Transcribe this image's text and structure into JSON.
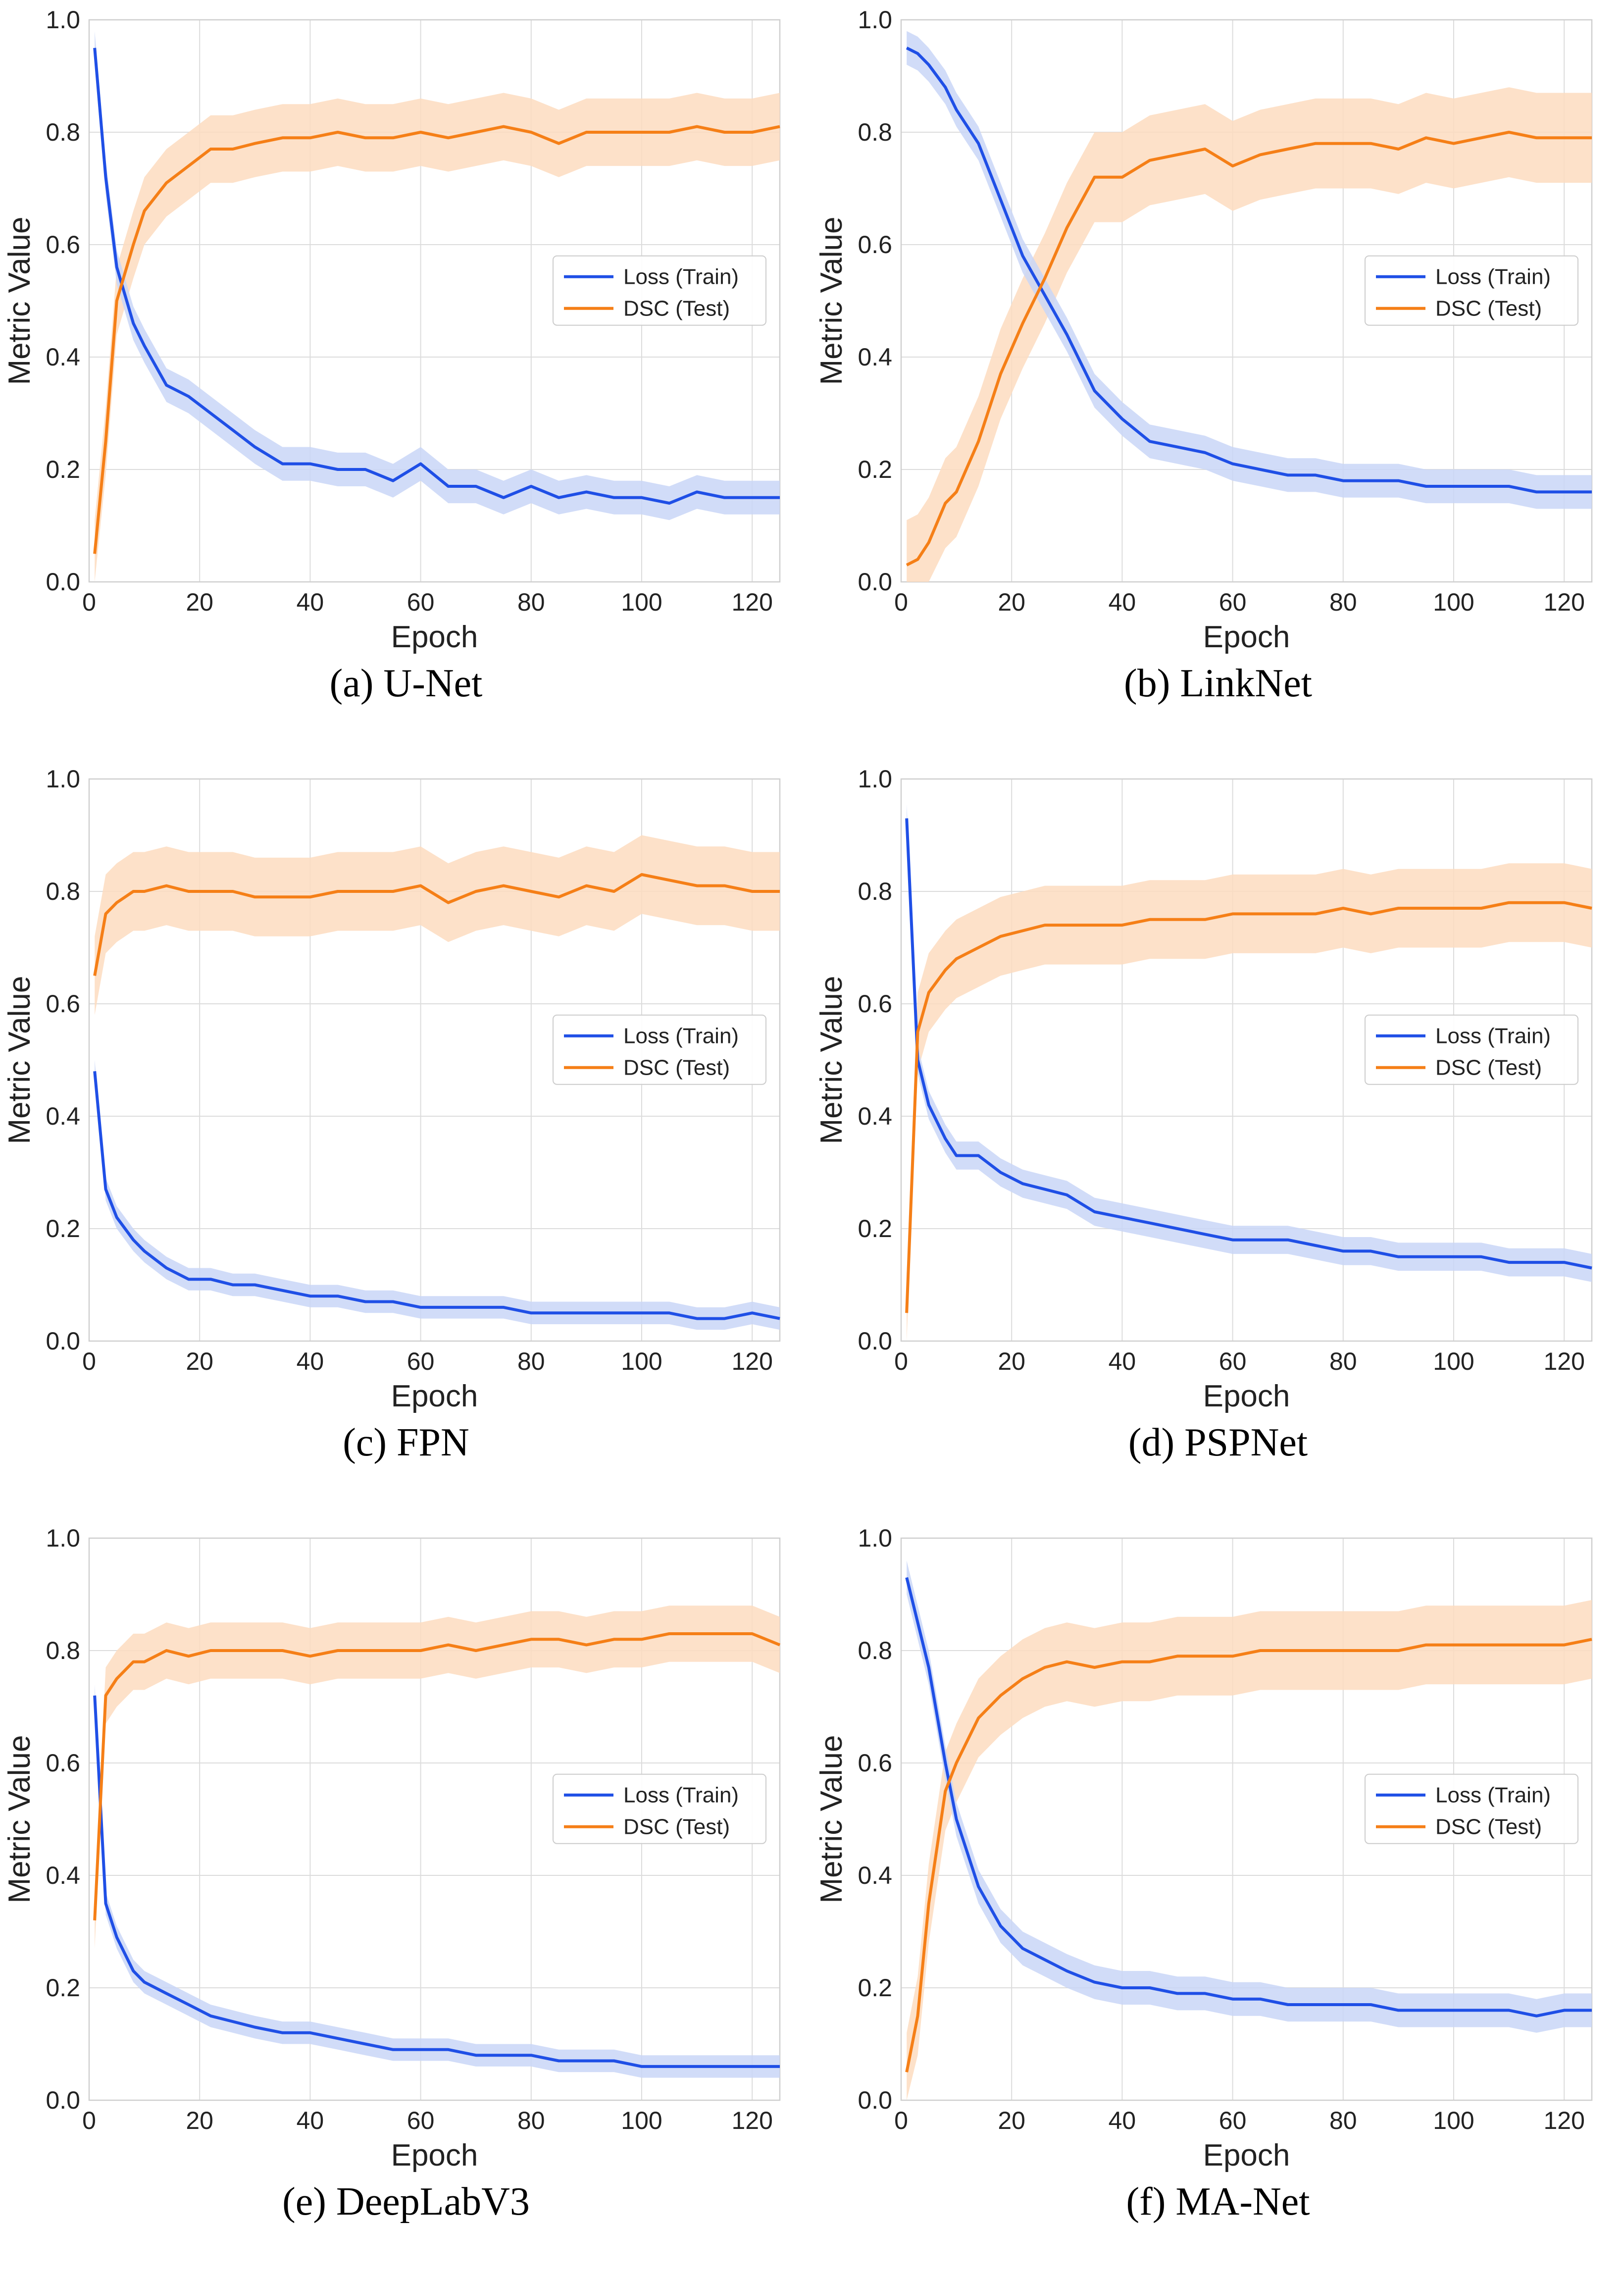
{
  "figure": {
    "colors": {
      "loss": "#1f4fe6",
      "loss_band": "#c9d6f7",
      "dsc": "#f57f17",
      "dsc_band": "#fddcbf",
      "grid": "#dcdcdc",
      "axis": "#cfcfcf"
    }
  },
  "chart_data": [
    {
      "type": "line",
      "caption": "(a) U-Net",
      "xlabel": "Epoch",
      "ylabel": "Metric Value",
      "xlim": [
        0,
        125
      ],
      "ylim": [
        0,
        1.0
      ],
      "xticks": [
        "0",
        "20",
        "40",
        "60",
        "80",
        "100",
        "120"
      ],
      "yticks": [
        "0.0",
        "0.2",
        "0.4",
        "0.6",
        "0.8",
        "1.0"
      ],
      "grid": true,
      "legend_position": "right",
      "series": [
        {
          "name": "Loss (Train)",
          "color": "#1f4fe6",
          "band": 0.03,
          "x": [
            1,
            3,
            5,
            8,
            10,
            14,
            18,
            22,
            26,
            30,
            35,
            40,
            45,
            50,
            55,
            60,
            65,
            70,
            75,
            80,
            85,
            90,
            95,
            100,
            105,
            110,
            115,
            120,
            125
          ],
          "values": [
            0.95,
            0.72,
            0.56,
            0.46,
            0.42,
            0.35,
            0.33,
            0.3,
            0.27,
            0.24,
            0.21,
            0.21,
            0.2,
            0.2,
            0.18,
            0.21,
            0.17,
            0.17,
            0.15,
            0.17,
            0.15,
            0.16,
            0.15,
            0.15,
            0.14,
            0.16,
            0.15,
            0.15,
            0.15
          ]
        },
        {
          "name": "DSC (Test)",
          "color": "#f57f17",
          "band": 0.06,
          "x": [
            1,
            3,
            5,
            8,
            10,
            14,
            18,
            22,
            26,
            30,
            35,
            40,
            45,
            50,
            55,
            60,
            65,
            70,
            75,
            80,
            85,
            90,
            95,
            100,
            105,
            110,
            115,
            120,
            125
          ],
          "values": [
            0.05,
            0.25,
            0.5,
            0.6,
            0.66,
            0.71,
            0.74,
            0.77,
            0.77,
            0.78,
            0.79,
            0.79,
            0.8,
            0.79,
            0.79,
            0.8,
            0.79,
            0.8,
            0.81,
            0.8,
            0.78,
            0.8,
            0.8,
            0.8,
            0.8,
            0.81,
            0.8,
            0.8,
            0.81
          ]
        }
      ]
    },
    {
      "type": "line",
      "caption": "(b) LinkNet",
      "xlabel": "Epoch",
      "ylabel": "Metric Value",
      "xlim": [
        0,
        125
      ],
      "ylim": [
        0,
        1.0
      ],
      "xticks": [
        "0",
        "20",
        "40",
        "60",
        "80",
        "100",
        "120"
      ],
      "yticks": [
        "0.0",
        "0.2",
        "0.4",
        "0.6",
        "0.8",
        "1.0"
      ],
      "grid": true,
      "legend_position": "right",
      "series": [
        {
          "name": "Loss (Train)",
          "color": "#1f4fe6",
          "band": 0.03,
          "x": [
            1,
            3,
            5,
            8,
            10,
            14,
            18,
            22,
            26,
            30,
            35,
            40,
            45,
            50,
            55,
            60,
            65,
            70,
            75,
            80,
            85,
            90,
            95,
            100,
            105,
            110,
            115,
            120,
            125
          ],
          "values": [
            0.95,
            0.94,
            0.92,
            0.88,
            0.84,
            0.78,
            0.68,
            0.58,
            0.51,
            0.44,
            0.34,
            0.29,
            0.25,
            0.24,
            0.23,
            0.21,
            0.2,
            0.19,
            0.19,
            0.18,
            0.18,
            0.18,
            0.17,
            0.17,
            0.17,
            0.17,
            0.16,
            0.16,
            0.16
          ]
        },
        {
          "name": "DSC (Test)",
          "color": "#f57f17",
          "band": 0.08,
          "x": [
            1,
            3,
            5,
            8,
            10,
            14,
            18,
            22,
            26,
            30,
            35,
            40,
            45,
            50,
            55,
            60,
            65,
            70,
            75,
            80,
            85,
            90,
            95,
            100,
            105,
            110,
            115,
            120,
            125
          ],
          "values": [
            0.03,
            0.04,
            0.07,
            0.14,
            0.16,
            0.25,
            0.37,
            0.46,
            0.54,
            0.63,
            0.72,
            0.72,
            0.75,
            0.76,
            0.77,
            0.74,
            0.76,
            0.77,
            0.78,
            0.78,
            0.78,
            0.77,
            0.79,
            0.78,
            0.79,
            0.8,
            0.79,
            0.79,
            0.79
          ]
        }
      ]
    },
    {
      "type": "line",
      "caption": "(c) FPN",
      "xlabel": "Epoch",
      "ylabel": "Metric Value",
      "xlim": [
        0,
        125
      ],
      "ylim": [
        0,
        1.0
      ],
      "xticks": [
        "0",
        "20",
        "40",
        "60",
        "80",
        "100",
        "120"
      ],
      "yticks": [
        "0.0",
        "0.2",
        "0.4",
        "0.6",
        "0.8",
        "1.0"
      ],
      "grid": true,
      "legend_position": "right",
      "series": [
        {
          "name": "Loss (Train)",
          "color": "#1f4fe6",
          "band": 0.02,
          "x": [
            1,
            3,
            5,
            8,
            10,
            14,
            18,
            22,
            26,
            30,
            35,
            40,
            45,
            50,
            55,
            60,
            65,
            70,
            75,
            80,
            85,
            90,
            95,
            100,
            105,
            110,
            115,
            120,
            125
          ],
          "values": [
            0.48,
            0.27,
            0.22,
            0.18,
            0.16,
            0.13,
            0.11,
            0.11,
            0.1,
            0.1,
            0.09,
            0.08,
            0.08,
            0.07,
            0.07,
            0.06,
            0.06,
            0.06,
            0.06,
            0.05,
            0.05,
            0.05,
            0.05,
            0.05,
            0.05,
            0.04,
            0.04,
            0.05,
            0.04
          ]
        },
        {
          "name": "DSC (Test)",
          "color": "#f57f17",
          "band": 0.07,
          "x": [
            1,
            3,
            5,
            8,
            10,
            14,
            18,
            22,
            26,
            30,
            35,
            40,
            45,
            50,
            55,
            60,
            65,
            70,
            75,
            80,
            85,
            90,
            95,
            100,
            105,
            110,
            115,
            120,
            125
          ],
          "values": [
            0.65,
            0.76,
            0.78,
            0.8,
            0.8,
            0.81,
            0.8,
            0.8,
            0.8,
            0.79,
            0.79,
            0.79,
            0.8,
            0.8,
            0.8,
            0.81,
            0.78,
            0.8,
            0.81,
            0.8,
            0.79,
            0.81,
            0.8,
            0.83,
            0.82,
            0.81,
            0.81,
            0.8,
            0.8
          ]
        }
      ]
    },
    {
      "type": "line",
      "caption": "(d) PSPNet",
      "xlabel": "Epoch",
      "ylabel": "Metric Value",
      "xlim": [
        0,
        125
      ],
      "ylim": [
        0,
        1.0
      ],
      "xticks": [
        "0",
        "20",
        "40",
        "60",
        "80",
        "100",
        "120"
      ],
      "yticks": [
        "0.0",
        "0.2",
        "0.4",
        "0.6",
        "0.8",
        "1.0"
      ],
      "grid": true,
      "legend_position": "right",
      "series": [
        {
          "name": "Loss (Train)",
          "color": "#1f4fe6",
          "band": 0.025,
          "x": [
            1,
            3,
            5,
            8,
            10,
            14,
            18,
            22,
            26,
            30,
            35,
            40,
            45,
            50,
            55,
            60,
            65,
            70,
            75,
            80,
            85,
            90,
            95,
            100,
            105,
            110,
            115,
            120,
            125
          ],
          "values": [
            0.93,
            0.5,
            0.42,
            0.36,
            0.33,
            0.33,
            0.3,
            0.28,
            0.27,
            0.26,
            0.23,
            0.22,
            0.21,
            0.2,
            0.19,
            0.18,
            0.18,
            0.18,
            0.17,
            0.16,
            0.16,
            0.15,
            0.15,
            0.15,
            0.15,
            0.14,
            0.14,
            0.14,
            0.13
          ]
        },
        {
          "name": "DSC (Test)",
          "color": "#f57f17",
          "band": 0.07,
          "x": [
            1,
            3,
            5,
            8,
            10,
            14,
            18,
            22,
            26,
            30,
            35,
            40,
            45,
            50,
            55,
            60,
            65,
            70,
            75,
            80,
            85,
            90,
            95,
            100,
            105,
            110,
            115,
            120,
            125
          ],
          "values": [
            0.05,
            0.55,
            0.62,
            0.66,
            0.68,
            0.7,
            0.72,
            0.73,
            0.74,
            0.74,
            0.74,
            0.74,
            0.75,
            0.75,
            0.75,
            0.76,
            0.76,
            0.76,
            0.76,
            0.77,
            0.76,
            0.77,
            0.77,
            0.77,
            0.77,
            0.78,
            0.78,
            0.78,
            0.77
          ]
        }
      ]
    },
    {
      "type": "line",
      "caption": "(e) DeepLabV3",
      "xlabel": "Epoch",
      "ylabel": "Metric Value",
      "xlim": [
        0,
        125
      ],
      "ylim": [
        0,
        1.0
      ],
      "xticks": [
        "0",
        "20",
        "40",
        "60",
        "80",
        "100",
        "120"
      ],
      "yticks": [
        "0.0",
        "0.2",
        "0.4",
        "0.6",
        "0.8",
        "1.0"
      ],
      "grid": true,
      "legend_position": "right",
      "series": [
        {
          "name": "Loss (Train)",
          "color": "#1f4fe6",
          "band": 0.02,
          "x": [
            1,
            3,
            5,
            8,
            10,
            14,
            18,
            22,
            26,
            30,
            35,
            40,
            45,
            50,
            55,
            60,
            65,
            70,
            75,
            80,
            85,
            90,
            95,
            100,
            105,
            110,
            115,
            120,
            125
          ],
          "values": [
            0.72,
            0.35,
            0.29,
            0.23,
            0.21,
            0.19,
            0.17,
            0.15,
            0.14,
            0.13,
            0.12,
            0.12,
            0.11,
            0.1,
            0.09,
            0.09,
            0.09,
            0.08,
            0.08,
            0.08,
            0.07,
            0.07,
            0.07,
            0.06,
            0.06,
            0.06,
            0.06,
            0.06,
            0.06
          ]
        },
        {
          "name": "DSC (Test)",
          "color": "#f57f17",
          "band": 0.05,
          "x": [
            1,
            3,
            5,
            8,
            10,
            14,
            18,
            22,
            26,
            30,
            35,
            40,
            45,
            50,
            55,
            60,
            65,
            70,
            75,
            80,
            85,
            90,
            95,
            100,
            105,
            110,
            115,
            120,
            125
          ],
          "values": [
            0.32,
            0.72,
            0.75,
            0.78,
            0.78,
            0.8,
            0.79,
            0.8,
            0.8,
            0.8,
            0.8,
            0.79,
            0.8,
            0.8,
            0.8,
            0.8,
            0.81,
            0.8,
            0.81,
            0.82,
            0.82,
            0.81,
            0.82,
            0.82,
            0.83,
            0.83,
            0.83,
            0.83,
            0.81
          ]
        }
      ]
    },
    {
      "type": "line",
      "caption": "(f) MA-Net",
      "xlabel": "Epoch",
      "ylabel": "Metric Value",
      "xlim": [
        0,
        125
      ],
      "ylim": [
        0,
        1.0
      ],
      "xticks": [
        "0",
        "20",
        "40",
        "60",
        "80",
        "100",
        "120"
      ],
      "yticks": [
        "0.0",
        "0.2",
        "0.4",
        "0.6",
        "0.8",
        "1.0"
      ],
      "grid": true,
      "legend_position": "right",
      "series": [
        {
          "name": "Loss (Train)",
          "color": "#1f4fe6",
          "band": 0.03,
          "x": [
            1,
            3,
            5,
            8,
            10,
            14,
            18,
            22,
            26,
            30,
            35,
            40,
            45,
            50,
            55,
            60,
            65,
            70,
            75,
            80,
            85,
            90,
            95,
            100,
            105,
            110,
            115,
            120,
            125
          ],
          "values": [
            0.93,
            0.85,
            0.77,
            0.6,
            0.5,
            0.38,
            0.31,
            0.27,
            0.25,
            0.23,
            0.21,
            0.2,
            0.2,
            0.19,
            0.19,
            0.18,
            0.18,
            0.17,
            0.17,
            0.17,
            0.17,
            0.16,
            0.16,
            0.16,
            0.16,
            0.16,
            0.15,
            0.16,
            0.16
          ]
        },
        {
          "name": "DSC (Test)",
          "color": "#f57f17",
          "band": 0.07,
          "x": [
            1,
            3,
            5,
            8,
            10,
            14,
            18,
            22,
            26,
            30,
            35,
            40,
            45,
            50,
            55,
            60,
            65,
            70,
            75,
            80,
            85,
            90,
            95,
            100,
            105,
            110,
            115,
            120,
            125
          ],
          "values": [
            0.05,
            0.15,
            0.35,
            0.55,
            0.6,
            0.68,
            0.72,
            0.75,
            0.77,
            0.78,
            0.77,
            0.78,
            0.78,
            0.79,
            0.79,
            0.79,
            0.8,
            0.8,
            0.8,
            0.8,
            0.8,
            0.8,
            0.81,
            0.81,
            0.81,
            0.81,
            0.81,
            0.81,
            0.82
          ]
        }
      ]
    }
  ]
}
